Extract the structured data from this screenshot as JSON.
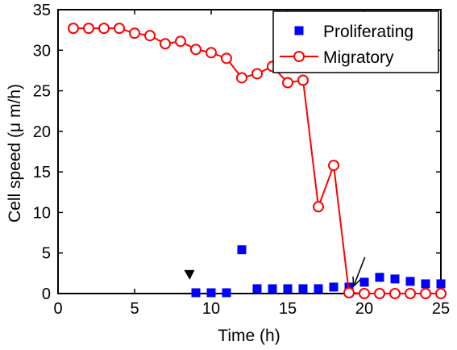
{
  "chart_data": {
    "type": "line",
    "xlabel": "Time (h)",
    "ylabel": "Cell speed (μ m/h)",
    "xlim": [
      0,
      25
    ],
    "ylim": [
      0,
      35
    ],
    "x_ticks": [
      0,
      5,
      10,
      15,
      20,
      25
    ],
    "y_ticks": [
      0,
      5,
      10,
      15,
      20,
      25,
      30,
      35
    ],
    "grid": false,
    "legend_position": "top-right",
    "series": [
      {
        "name": "Proliferating",
        "style": "markers",
        "marker": "square",
        "color": "#0000ff",
        "x": [
          9,
          10,
          11,
          12,
          13,
          14,
          15,
          16,
          17,
          18,
          19,
          20,
          21,
          22,
          23,
          24,
          25
        ],
        "y": [
          0.1,
          0.1,
          0.1,
          5.4,
          0.6,
          0.6,
          0.6,
          0.6,
          0.6,
          0.8,
          0.8,
          1.4,
          2.0,
          1.8,
          1.5,
          1.2,
          1.2
        ]
      },
      {
        "name": "Migratory",
        "style": "line+markers",
        "marker": "circle",
        "color": "#ff0000",
        "x": [
          1,
          2,
          3,
          4,
          5,
          6,
          7,
          8,
          9,
          10,
          11,
          12,
          13,
          14,
          15,
          16,
          17,
          18,
          19,
          20,
          21,
          22,
          23,
          24,
          25
        ],
        "y": [
          32.7,
          32.7,
          32.7,
          32.7,
          32.1,
          31.8,
          30.8,
          31.1,
          30.1,
          29.7,
          29.0,
          26.6,
          27.1,
          28.0,
          26.0,
          26.3,
          10.7,
          15.8,
          0.1,
          0.0,
          0.0,
          0.0,
          0.0,
          0.0,
          0.0
        ]
      }
    ],
    "annotations": [
      {
        "type": "arrowhead",
        "x": 8.6,
        "y": 2.3
      },
      {
        "type": "arrow",
        "x": 19.3,
        "y": 0.9
      }
    ]
  }
}
